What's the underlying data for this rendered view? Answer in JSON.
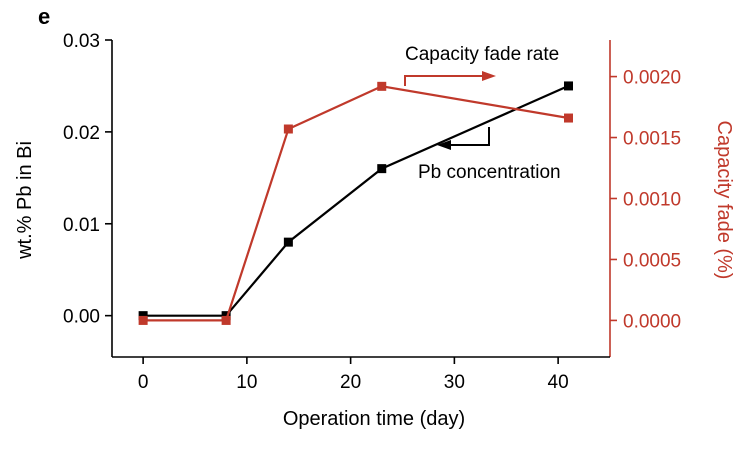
{
  "panel_label": "e",
  "colors": {
    "primary": "#000000",
    "secondary": "#c0392b"
  },
  "chart_data": {
    "type": "line",
    "title": "",
    "xlabel": "Operation time (day)",
    "ylabel_left": "wt.% Pb in Bi",
    "ylabel_right": "Capacity fade (%)",
    "xlim": [
      -3,
      45
    ],
    "ylim_left": [
      -0.0045,
      0.03
    ],
    "ylim_right": [
      -0.0003,
      0.0023
    ],
    "x_ticks": [
      0,
      10,
      20,
      30,
      40
    ],
    "x_tick_labels": [
      "0",
      "10",
      "20",
      "30",
      "40"
    ],
    "y_left_ticks": [
      0.0,
      0.01,
      0.02,
      0.03
    ],
    "y_left_tick_labels": [
      "0.00",
      "0.01",
      "0.02",
      "0.03"
    ],
    "y_right_ticks": [
      0.0,
      0.0005,
      0.001,
      0.0015,
      0.002
    ],
    "y_right_tick_labels": [
      "0.0000",
      "0.0005",
      "0.0010",
      "0.0015",
      "0.0020"
    ],
    "grid": false,
    "series": [
      {
        "axis": "left",
        "color": "#000000",
        "x": [
          0,
          8,
          14,
          23,
          41
        ],
        "y": [
          0.0,
          0.0,
          0.008,
          0.016,
          0.025
        ]
      },
      {
        "axis": "right",
        "color": "#c0392b",
        "x": [
          0,
          8,
          14,
          23,
          41
        ],
        "y": [
          0.0,
          0.0,
          0.00157,
          0.00192,
          0.00166
        ]
      }
    ],
    "annotations": [
      {
        "text": "Capacity fade rate",
        "color": "#c0392b",
        "arrow_direction": "right"
      },
      {
        "text": "Pb concentration",
        "color": "#000000",
        "arrow_direction": "left"
      }
    ]
  }
}
